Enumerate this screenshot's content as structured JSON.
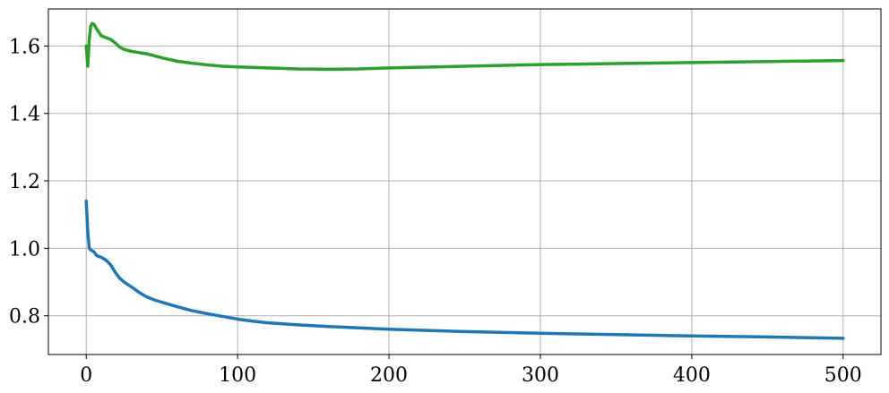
{
  "chart_data": {
    "type": "line",
    "title": "",
    "xlabel": "",
    "ylabel": "",
    "xlim": [
      -25,
      525
    ],
    "ylim": [
      0.685,
      1.71
    ],
    "grid": true,
    "legend": "none",
    "xticks": [
      0,
      100,
      200,
      300,
      400,
      500
    ],
    "xtick_labels": [
      "0",
      "100",
      "200",
      "300",
      "400",
      "500"
    ],
    "yticks": [
      0.8,
      1.0,
      1.2,
      1.4,
      1.6
    ],
    "ytick_labels": [
      "0.8",
      "1.0",
      "1.2",
      "1.4",
      "1.6"
    ],
    "series": [
      {
        "color": "#1f77b4",
        "x": [
          0,
          1,
          2,
          3,
          5,
          7,
          10,
          13,
          16,
          19,
          22,
          25,
          30,
          35,
          40,
          45,
          50,
          60,
          70,
          80,
          90,
          100,
          110,
          120,
          140,
          160,
          180,
          200,
          250,
          300,
          350,
          400,
          450,
          500
        ],
        "y": [
          1.14,
          1.05,
          1.0,
          0.995,
          0.99,
          0.978,
          0.973,
          0.965,
          0.952,
          0.93,
          0.912,
          0.9,
          0.885,
          0.869,
          0.856,
          0.847,
          0.84,
          0.827,
          0.815,
          0.806,
          0.798,
          0.79,
          0.784,
          0.779,
          0.773,
          0.768,
          0.764,
          0.76,
          0.753,
          0.748,
          0.744,
          0.74,
          0.737,
          0.733
        ]
      },
      {
        "color": "#2ca02c",
        "x": [
          0,
          1,
          2,
          3,
          4,
          5,
          7,
          10,
          13,
          16,
          19,
          22,
          25,
          30,
          40,
          50,
          60,
          70,
          80,
          90,
          100,
          120,
          140,
          160,
          180,
          200,
          250,
          300,
          350,
          400,
          450,
          500
        ],
        "y": [
          1.6,
          1.54,
          1.62,
          1.66,
          1.667,
          1.665,
          1.65,
          1.63,
          1.625,
          1.62,
          1.61,
          1.597,
          1.59,
          1.584,
          1.577,
          1.565,
          1.555,
          1.549,
          1.544,
          1.54,
          1.538,
          1.535,
          1.532,
          1.531,
          1.532,
          1.535,
          1.54,
          1.545,
          1.548,
          1.551,
          1.554,
          1.557
        ]
      }
    ]
  }
}
